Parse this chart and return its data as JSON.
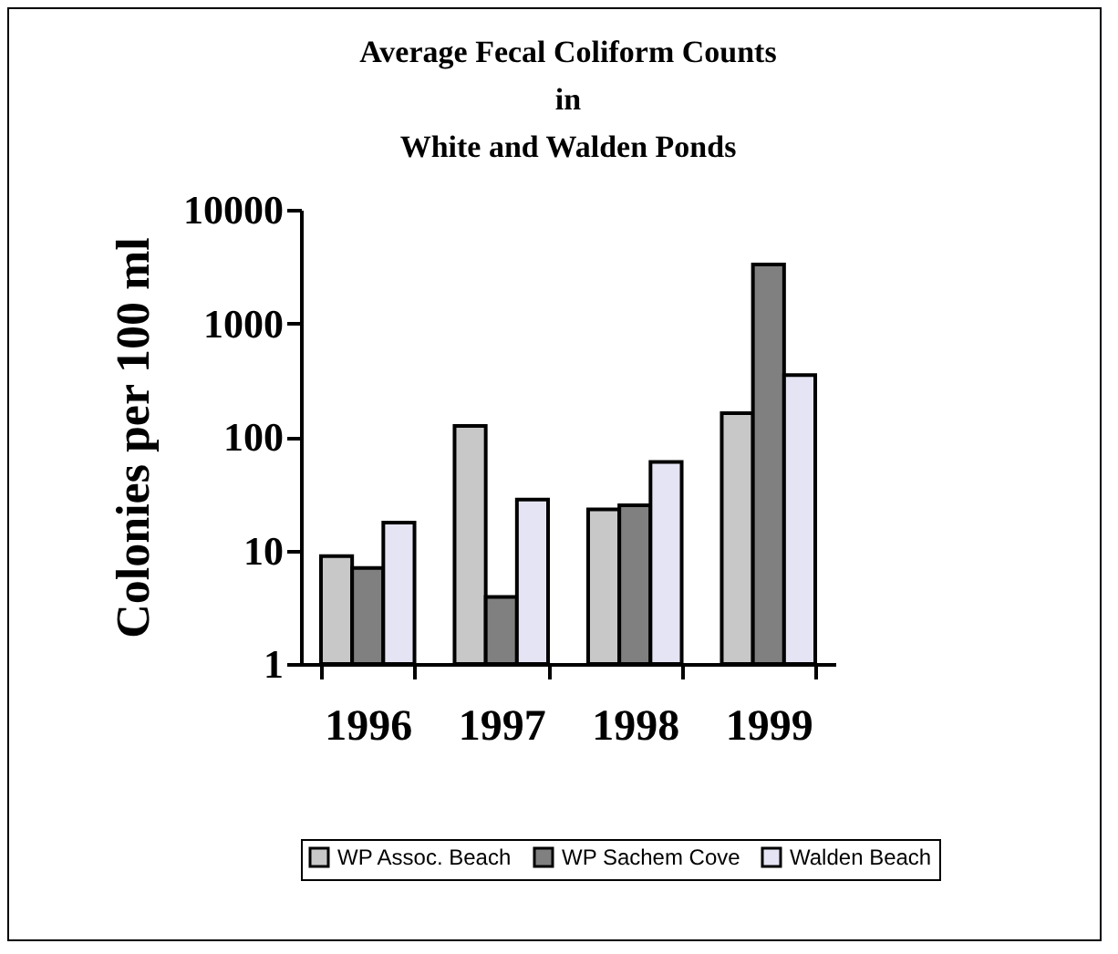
{
  "chart_data": {
    "type": "bar",
    "title": "Average Fecal Coliform Counts\nin\nWhite and Walden Ponds",
    "ylabel": "Colonies per 100 ml",
    "categories": [
      "1996",
      "1997",
      "1998",
      "1999"
    ],
    "series": [
      {
        "name": "WP Assoc. Beach",
        "color": "#c8c8c8",
        "values": [
          8.9,
          125,
          23,
          162
        ]
      },
      {
        "name": "WP Sachem Cove",
        "color": "#808080",
        "values": [
          7,
          3.9,
          25,
          3300
        ]
      },
      {
        "name": "Walden Beach",
        "color": "#e4e4f4",
        "values": [
          17.6,
          28,
          60,
          350
        ]
      }
    ],
    "log": true,
    "ylim": [
      1,
      10000
    ],
    "yticks": [
      1,
      10,
      100,
      1000,
      10000
    ],
    "grid": false,
    "legend": "bottom"
  }
}
